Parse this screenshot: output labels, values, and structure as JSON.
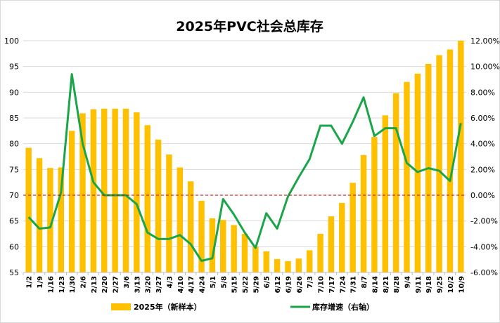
{
  "chart_data": {
    "type": "bar+line",
    "title": "2025年PVC社会总库存",
    "categories": [
      "1/2",
      "1/9",
      "1/16",
      "1/23",
      "1/30",
      "2/6",
      "2/13",
      "2/20",
      "2/27",
      "3/6",
      "3/13",
      "3/20",
      "3/27",
      "4/3",
      "4/10",
      "4/17",
      "4/24",
      "5/1",
      "5/8",
      "5/15",
      "5/22",
      "5/29",
      "6/5",
      "6/12",
      "6/19",
      "6/26",
      "7/3",
      "7/10",
      "7/17",
      "7/24",
      "7/31",
      "8/7",
      "8/14",
      "8/21",
      "8/28",
      "9/4",
      "9/11",
      "9/18",
      "9/25",
      "10/2",
      "10/9"
    ],
    "series": [
      {
        "name": "2025年（新样本）",
        "type": "bar",
        "axis": "left",
        "color": "#FFC000",
        "values": [
          79.2,
          77.2,
          75.3,
          75.4,
          82.5,
          85.9,
          86.7,
          86.8,
          86.8,
          86.8,
          86.1,
          83.6,
          80.8,
          77.9,
          75.4,
          72.7,
          68.9,
          65.5,
          65.2,
          64.2,
          62.5,
          60.0,
          59.1,
          57.6,
          57.2,
          57.7,
          59.3,
          62.5,
          65.9,
          68.5,
          72.4,
          77.8,
          81.3,
          85.5,
          89.8,
          92.0,
          93.6,
          95.5,
          97.2,
          98.3,
          100.0
        ]
      },
      {
        "name": "库存增速（右轴）",
        "type": "line",
        "axis": "right",
        "color": "#1AA548",
        "values": [
          -1.7,
          -2.6,
          -2.5,
          0.2,
          9.4,
          4.0,
          1.0,
          0.0,
          0.0,
          0.0,
          -0.7,
          -2.9,
          -3.4,
          -3.4,
          -3.1,
          -3.8,
          -5.1,
          -4.9,
          -0.3,
          -1.5,
          -2.9,
          -4.1,
          -1.4,
          -2.6,
          -0.1,
          1.4,
          2.8,
          5.4,
          5.4,
          4.0,
          5.7,
          7.6,
          4.6,
          5.2,
          5.2,
          2.5,
          1.8,
          2.1,
          1.9,
          1.1,
          5.6
        ]
      }
    ],
    "ylim": [
      55,
      100
    ],
    "yticks": [
      "55",
      "60",
      "65",
      "70",
      "75",
      "80",
      "85",
      "90",
      "95",
      "100"
    ],
    "y2lim": [
      -6,
      12
    ],
    "y2ticks": [
      "-6.00%",
      "-4.00%",
      "-2.00%",
      "0.00%",
      "2.00%",
      "4.00%",
      "6.00%",
      "8.00%",
      "10.00%",
      "12.00%"
    ],
    "zero_line_color": "#C00000",
    "grid": true,
    "legend": "bottom"
  }
}
